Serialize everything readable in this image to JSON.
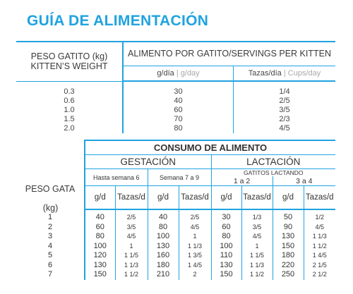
{
  "title": "GUÍA DE ALIMENTACIÓN",
  "kitten": {
    "col1_header_line1": "PESO GATITO",
    "col1_header_line2": "KITTEN’S WEIGHT",
    "col1_unit": "(kg)",
    "col2_header": "ALIMENTO POR GATITO/SERVINGS PER KITTEN",
    "sub_gday_main": "g/día",
    "sub_gday_sep": " | ",
    "sub_gday_alt": "g/day",
    "sub_cups_main": "Tazas/día",
    "sub_cups_sep": " | ",
    "sub_cups_alt": "Cups/day",
    "rows": [
      {
        "weight": "0.3",
        "grams": "30",
        "cups": "1/4"
      },
      {
        "weight": "0.6",
        "grams": "40",
        "cups": "2/5"
      },
      {
        "weight": "1.0",
        "grams": "60",
        "cups": "3/5"
      },
      {
        "weight": "1.5",
        "grams": "70",
        "cups": "2/3"
      },
      {
        "weight": "2.0",
        "grams": "80",
        "cups": "4/5"
      }
    ]
  },
  "adult": {
    "consumo": "CONSUMO DE ALIMENTO",
    "gestacion": "GESTACIÓN",
    "lactacion": "LACTACIÓN",
    "peso_gata": "PESO GATA",
    "kg": "(kg)",
    "hasta": "Hasta semana 6",
    "semana": "Semana 7 a 9",
    "gatitos": "GATITOS LACTANDO",
    "range1": "1 a 2",
    "range2": "3 a 4",
    "gd": "g/d",
    "tazas": "Tazas/d",
    "rows": [
      {
        "w": "1",
        "a": "40",
        "b": "2/5",
        "c": "40",
        "d": "2/5",
        "e": "30",
        "f": "1/3",
        "g": "50",
        "h": "1/2"
      },
      {
        "w": "2",
        "a": "60",
        "b": "3/5",
        "c": "80",
        "d": "4/5",
        "e": "60",
        "f": "3/5",
        "g": "90",
        "h": "4/5"
      },
      {
        "w": "3",
        "a": "80",
        "b": "4/5",
        "c": "100",
        "d": "1",
        "e": "80",
        "f": "4/5",
        "g": "130",
        "h": "1 1/3"
      },
      {
        "w": "4",
        "a": "100",
        "b": "1",
        "c": "130",
        "d": "1 1/3",
        "e": "100",
        "f": "1",
        "g": "150",
        "h": "1 1/2"
      },
      {
        "w": "5",
        "a": "120",
        "b": "1 1/5",
        "c": "160",
        "d": "1 3/5",
        "e": "110",
        "f": "1 1/5",
        "g": "180",
        "h": "1 4/5"
      },
      {
        "w": "6",
        "a": "130",
        "b": "1 1/3",
        "c": "180",
        "d": "1 4/5",
        "e": "130",
        "f": "1 1/3",
        "g": "220",
        "h": "2 1/5"
      },
      {
        "w": "7",
        "a": "150",
        "b": "1 1/2",
        "c": "210",
        "d": "2",
        "e": "150",
        "f": "1 1/2",
        "g": "250",
        "h": "2 1/2"
      }
    ]
  },
  "colors": {
    "accent": "#1fa3e0",
    "muted": "#a8a8a8"
  }
}
